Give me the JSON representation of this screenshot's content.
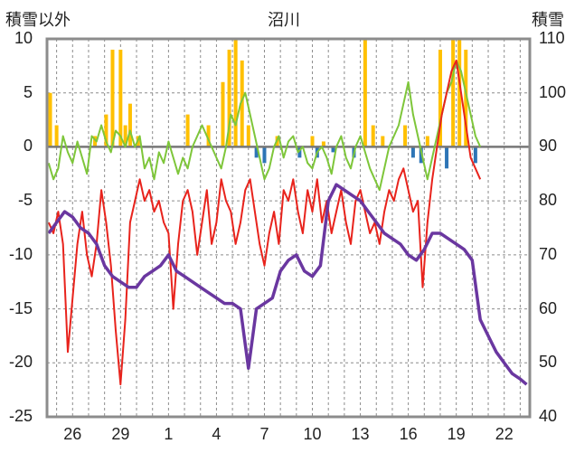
{
  "chart_data": {
    "type": "line",
    "title": "沼川",
    "left_axis_label": "積雪以外",
    "right_axis_label": "積雪",
    "left_ylim": [
      -25,
      10
    ],
    "left_ticks": [
      "10",
      "5",
      "0",
      "-5",
      "-10",
      "-15",
      "-20",
      "-25"
    ],
    "right_ylim": [
      40,
      110
    ],
    "right_ticks": [
      "110",
      "100",
      "90",
      "80",
      "70",
      "60",
      "50",
      "40"
    ],
    "x_tick_labels": [
      "26",
      "29",
      "1",
      "4",
      "7",
      "10",
      "13",
      "16",
      "19",
      "22"
    ],
    "grid": true,
    "colors": {
      "temp_max": "#7ec63a",
      "temp_min": "#e8231c",
      "snow_depth": "#6a37a0",
      "precip_positive": "#ffc000",
      "precip_negative": "#2e75b6",
      "zero_line": "#777777"
    },
    "series": [
      {
        "key": "temp_max",
        "axis": "left",
        "points": [
          [
            24.5,
            -1.5
          ],
          [
            24.8,
            -3
          ],
          [
            25.1,
            -2
          ],
          [
            25.4,
            1
          ],
          [
            25.7,
            -0.5
          ],
          [
            26.0,
            -1.5
          ],
          [
            26.3,
            0.5
          ],
          [
            26.6,
            -1
          ],
          [
            26.9,
            -2.5
          ],
          [
            27.2,
            1
          ],
          [
            27.5,
            0.5
          ],
          [
            27.8,
            2
          ],
          [
            28.1,
            0.5
          ],
          [
            28.4,
            -0.5
          ],
          [
            28.7,
            1.5
          ],
          [
            29.0,
            1
          ],
          [
            29.3,
            0
          ],
          [
            29.6,
            1.5
          ],
          [
            29.9,
            0
          ],
          [
            30.2,
            1
          ],
          [
            30.5,
            -2
          ],
          [
            30.8,
            -1
          ],
          [
            31.1,
            -3
          ],
          [
            31.4,
            -0.5
          ],
          [
            31.7,
            -1.5
          ],
          [
            32.0,
            0.5
          ],
          [
            32.3,
            -1
          ],
          [
            32.6,
            -2.5
          ],
          [
            32.9,
            -1
          ],
          [
            33.2,
            -2
          ],
          [
            33.5,
            0
          ],
          [
            33.8,
            1
          ],
          [
            34.1,
            2
          ],
          [
            34.4,
            1
          ],
          [
            34.7,
            0
          ],
          [
            35.0,
            -1
          ],
          [
            35.3,
            -2
          ],
          [
            35.6,
            0
          ],
          [
            35.9,
            3
          ],
          [
            36.2,
            2
          ],
          [
            36.5,
            4
          ],
          [
            36.8,
            5
          ],
          [
            37.1,
            3
          ],
          [
            37.4,
            1
          ],
          [
            37.7,
            -1
          ],
          [
            38.0,
            -3
          ],
          [
            38.3,
            -2
          ],
          [
            38.6,
            0
          ],
          [
            38.9,
            1
          ],
          [
            39.2,
            -1
          ],
          [
            39.5,
            0.5
          ],
          [
            39.8,
            1
          ],
          [
            40.1,
            -0.5
          ],
          [
            40.4,
            0
          ],
          [
            40.7,
            -1.5
          ],
          [
            41.0,
            -2
          ],
          [
            41.3,
            -0.5
          ],
          [
            41.6,
            0
          ],
          [
            41.9,
            -1
          ],
          [
            42.2,
            -2.5
          ],
          [
            42.5,
            0
          ],
          [
            42.8,
            1
          ],
          [
            43.1,
            -1
          ],
          [
            43.4,
            -2
          ],
          [
            43.7,
            0
          ],
          [
            44.0,
            1
          ],
          [
            44.3,
            -0.5
          ],
          [
            44.6,
            -2
          ],
          [
            44.9,
            -3
          ],
          [
            45.2,
            -4
          ],
          [
            45.5,
            -2
          ],
          [
            45.8,
            0
          ],
          [
            46.1,
            1
          ],
          [
            46.4,
            2
          ],
          [
            46.7,
            4
          ],
          [
            47.0,
            6
          ],
          [
            47.3,
            3
          ],
          [
            47.6,
            1
          ],
          [
            47.9,
            -1
          ],
          [
            48.2,
            -3
          ],
          [
            48.5,
            -1
          ],
          [
            48.8,
            1
          ],
          [
            49.1,
            3
          ],
          [
            49.4,
            5
          ],
          [
            49.7,
            6
          ],
          [
            50.0,
            8
          ],
          [
            50.3,
            7
          ],
          [
            50.6,
            5
          ],
          [
            50.9,
            3
          ],
          [
            51.2,
            1
          ],
          [
            51.5,
            0
          ]
        ]
      },
      {
        "key": "temp_min",
        "axis": "left",
        "points": [
          [
            24.5,
            -7
          ],
          [
            24.8,
            -8
          ],
          [
            25.1,
            -6
          ],
          [
            25.4,
            -9
          ],
          [
            25.7,
            -19
          ],
          [
            26.0,
            -14
          ],
          [
            26.3,
            -9
          ],
          [
            26.6,
            -6
          ],
          [
            26.9,
            -10
          ],
          [
            27.2,
            -12
          ],
          [
            27.5,
            -9
          ],
          [
            27.8,
            -4
          ],
          [
            28.1,
            -7
          ],
          [
            28.4,
            -11
          ],
          [
            28.7,
            -17
          ],
          [
            29.0,
            -22
          ],
          [
            29.3,
            -16
          ],
          [
            29.6,
            -7
          ],
          [
            29.9,
            -5
          ],
          [
            30.2,
            -3
          ],
          [
            30.5,
            -5
          ],
          [
            30.8,
            -4
          ],
          [
            31.1,
            -6
          ],
          [
            31.4,
            -5
          ],
          [
            31.7,
            -7
          ],
          [
            32.0,
            -8
          ],
          [
            32.3,
            -15
          ],
          [
            32.6,
            -9
          ],
          [
            32.9,
            -5
          ],
          [
            33.2,
            -4
          ],
          [
            33.5,
            -6
          ],
          [
            33.8,
            -10
          ],
          [
            34.1,
            -7
          ],
          [
            34.4,
            -4
          ],
          [
            34.7,
            -9
          ],
          [
            35.0,
            -7
          ],
          [
            35.3,
            -3
          ],
          [
            35.6,
            -5
          ],
          [
            35.9,
            -6
          ],
          [
            36.2,
            -9
          ],
          [
            36.5,
            -7
          ],
          [
            36.8,
            -4
          ],
          [
            37.1,
            -3
          ],
          [
            37.4,
            -6
          ],
          [
            37.7,
            -9
          ],
          [
            38.0,
            -11
          ],
          [
            38.3,
            -8
          ],
          [
            38.6,
            -6
          ],
          [
            38.9,
            -9
          ],
          [
            39.2,
            -4
          ],
          [
            39.5,
            -5
          ],
          [
            39.8,
            -3
          ],
          [
            40.1,
            -6
          ],
          [
            40.4,
            -8
          ],
          [
            40.7,
            -4
          ],
          [
            41.0,
            -6
          ],
          [
            41.3,
            -3
          ],
          [
            41.6,
            -7
          ],
          [
            41.9,
            -5
          ],
          [
            42.2,
            -8
          ],
          [
            42.5,
            -6
          ],
          [
            42.8,
            -4
          ],
          [
            43.1,
            -7
          ],
          [
            43.4,
            -9
          ],
          [
            43.7,
            -5
          ],
          [
            44.0,
            -4
          ],
          [
            44.3,
            -6
          ],
          [
            44.6,
            -8
          ],
          [
            44.9,
            -7
          ],
          [
            45.2,
            -9
          ],
          [
            45.5,
            -6
          ],
          [
            45.8,
            -4
          ],
          [
            46.1,
            -5
          ],
          [
            46.4,
            -3
          ],
          [
            46.7,
            -2
          ],
          [
            47.0,
            -4
          ],
          [
            47.3,
            -6
          ],
          [
            47.6,
            -5
          ],
          [
            47.9,
            -13
          ],
          [
            48.2,
            -7
          ],
          [
            48.5,
            -3
          ],
          [
            48.8,
            0
          ],
          [
            49.1,
            3
          ],
          [
            49.4,
            5
          ],
          [
            49.7,
            7
          ],
          [
            50.0,
            8
          ],
          [
            50.3,
            5
          ],
          [
            50.6,
            2
          ],
          [
            50.9,
            -1
          ],
          [
            51.2,
            -2
          ],
          [
            51.5,
            -3
          ]
        ]
      },
      {
        "key": "snow_depth",
        "axis": "right",
        "points": [
          [
            24.5,
            74
          ],
          [
            25.0,
            76
          ],
          [
            25.5,
            78
          ],
          [
            26.0,
            77
          ],
          [
            26.5,
            75
          ],
          [
            27.0,
            74
          ],
          [
            27.5,
            72
          ],
          [
            28.0,
            68
          ],
          [
            28.5,
            66
          ],
          [
            29.0,
            65
          ],
          [
            29.5,
            64
          ],
          [
            30.0,
            64
          ],
          [
            30.5,
            66
          ],
          [
            31.0,
            67
          ],
          [
            31.5,
            68
          ],
          [
            32.0,
            70
          ],
          [
            32.5,
            67
          ],
          [
            33.0,
            66
          ],
          [
            33.5,
            65
          ],
          [
            34.0,
            64
          ],
          [
            34.5,
            63
          ],
          [
            35.0,
            62
          ],
          [
            35.5,
            61
          ],
          [
            36.0,
            61
          ],
          [
            36.5,
            60
          ],
          [
            37.0,
            49
          ],
          [
            37.5,
            60
          ],
          [
            38.0,
            61
          ],
          [
            38.5,
            62
          ],
          [
            39.0,
            67
          ],
          [
            39.5,
            69
          ],
          [
            40.0,
            70
          ],
          [
            40.5,
            67
          ],
          [
            41.0,
            66
          ],
          [
            41.5,
            68
          ],
          [
            42.0,
            80
          ],
          [
            42.5,
            83
          ],
          [
            43.0,
            82
          ],
          [
            43.5,
            81
          ],
          [
            44.0,
            80
          ],
          [
            44.5,
            78
          ],
          [
            45.0,
            76
          ],
          [
            45.5,
            74
          ],
          [
            46.0,
            73
          ],
          [
            46.5,
            72
          ],
          [
            47.0,
            70
          ],
          [
            47.5,
            69
          ],
          [
            48.0,
            71
          ],
          [
            48.5,
            74
          ],
          [
            49.0,
            74
          ],
          [
            49.5,
            73
          ],
          [
            50.0,
            72
          ],
          [
            50.5,
            71
          ],
          [
            51.0,
            69
          ],
          [
            51.5,
            58
          ],
          [
            52.0,
            55
          ],
          [
            52.5,
            52
          ],
          [
            53.0,
            50
          ],
          [
            53.5,
            48
          ],
          [
            54.0,
            47
          ],
          [
            54.4,
            46
          ]
        ]
      }
    ],
    "precip_bars": [
      [
        24.6,
        5
      ],
      [
        25.0,
        2
      ],
      [
        27.4,
        1
      ],
      [
        28.1,
        3
      ],
      [
        28.5,
        9
      ],
      [
        29.0,
        9
      ],
      [
        29.3,
        2
      ],
      [
        29.6,
        4
      ],
      [
        30.1,
        1
      ],
      [
        33.2,
        3
      ],
      [
        34.5,
        2
      ],
      [
        35.4,
        6
      ],
      [
        35.8,
        9
      ],
      [
        36.2,
        10
      ],
      [
        36.6,
        8
      ],
      [
        37.0,
        2
      ],
      [
        37.5,
        -1
      ],
      [
        38.0,
        -1.5
      ],
      [
        38.8,
        1
      ],
      [
        40.2,
        -1
      ],
      [
        41.0,
        1
      ],
      [
        41.3,
        -1
      ],
      [
        41.7,
        0.5
      ],
      [
        42.3,
        -0.5
      ],
      [
        43.6,
        -1
      ],
      [
        44.3,
        10
      ],
      [
        44.8,
        2
      ],
      [
        45.4,
        1
      ],
      [
        46.8,
        2
      ],
      [
        47.3,
        -1
      ],
      [
        47.8,
        -1.5
      ],
      [
        48.2,
        1
      ],
      [
        49.0,
        9
      ],
      [
        49.4,
        -2
      ],
      [
        49.8,
        10
      ],
      [
        50.2,
        10
      ],
      [
        50.6,
        9
      ],
      [
        51.2,
        -1.5
      ]
    ]
  }
}
